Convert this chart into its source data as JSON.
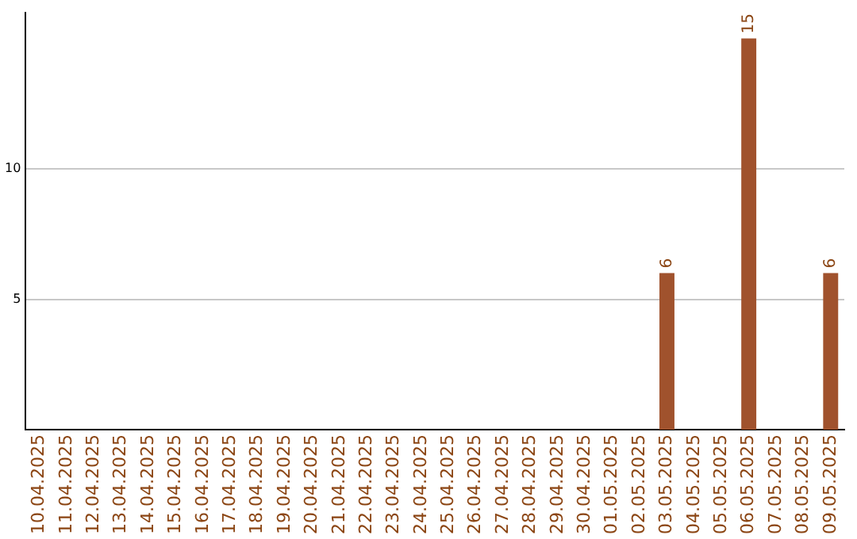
{
  "chart_data": {
    "type": "bar",
    "categories": [
      "10.04.2025",
      "11.04.2025",
      "12.04.2025",
      "13.04.2025",
      "14.04.2025",
      "15.04.2025",
      "16.04.2025",
      "17.04.2025",
      "18.04.2025",
      "19.04.2025",
      "20.04.2025",
      "21.04.2025",
      "22.04.2025",
      "23.04.2025",
      "24.04.2025",
      "25.04.2025",
      "26.04.2025",
      "27.04.2025",
      "28.04.2025",
      "29.04.2025",
      "30.04.2025",
      "01.05.2025",
      "02.05.2025",
      "03.05.2025",
      "04.05.2025",
      "05.05.2025",
      "06.05.2025",
      "07.05.2025",
      "08.05.2025",
      "09.05.2025"
    ],
    "values": [
      0,
      0,
      0,
      0,
      0,
      0,
      0,
      0,
      0,
      0,
      0,
      0,
      0,
      0,
      0,
      0,
      0,
      0,
      0,
      0,
      0,
      0,
      0,
      6,
      0,
      0,
      15,
      0,
      0,
      6
    ],
    "value_labels": [
      null,
      null,
      null,
      null,
      null,
      null,
      null,
      null,
      null,
      null,
      null,
      null,
      null,
      null,
      null,
      null,
      null,
      null,
      null,
      null,
      null,
      null,
      null,
      "6",
      null,
      null,
      "15",
      null,
      null,
      "6"
    ],
    "color": "#a0522d",
    "ylim": [
      0,
      16
    ],
    "yticks": [
      5,
      10
    ],
    "grid": "y",
    "legend": false
  }
}
